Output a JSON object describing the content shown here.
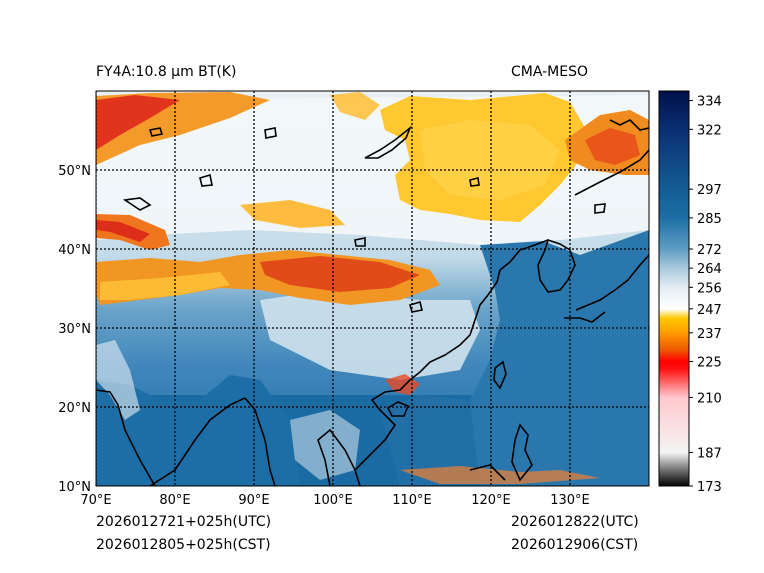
{
  "header": {
    "product_title": "FY4A:10.8 µm BT(K)",
    "model_title": "CMA-MESO"
  },
  "footer": {
    "init_utc": "2026012721+025h(UTC)",
    "init_cst": "2026012805+025h(CST)",
    "valid_utc": "2026012822(UTC)",
    "valid_cst": "2026012906(CST)"
  },
  "map": {
    "lon_range": [
      70,
      140
    ],
    "lat_range": [
      10,
      60
    ],
    "lon_ticks": [
      "70°E",
      "80°E",
      "90°E",
      "100°E",
      "110°E",
      "120°E",
      "130°E"
    ],
    "lat_ticks": [
      "10°N",
      "20°N",
      "30°N",
      "40°N",
      "50°N"
    ],
    "lon_tick_values": [
      70,
      80,
      90,
      100,
      110,
      120,
      130
    ],
    "lat_tick_values": [
      10,
      20,
      30,
      40,
      50
    ],
    "gridlines": "dotted"
  },
  "colorbar": {
    "unit": "K",
    "min": 173,
    "max": 338,
    "ticks": [
      173,
      187,
      210,
      225,
      237,
      247,
      256,
      264,
      272,
      285,
      297,
      322,
      334
    ],
    "tick_labels": [
      "173",
      "187",
      "210",
      "225",
      "237",
      "247",
      "256",
      "264",
      "272",
      "285",
      "297",
      "322",
      "334"
    ],
    "stops": [
      {
        "value": 173,
        "color": "#000000"
      },
      {
        "value": 180,
        "color": "#777777"
      },
      {
        "value": 187,
        "color": "#f4f4f4"
      },
      {
        "value": 210,
        "color": "#ffc8cc"
      },
      {
        "value": 222,
        "color": "#ff1010"
      },
      {
        "value": 225,
        "color": "#ff0000"
      },
      {
        "value": 230,
        "color": "#ee5a00"
      },
      {
        "value": 237,
        "color": "#ff9a00"
      },
      {
        "value": 243,
        "color": "#ffc800"
      },
      {
        "value": 247,
        "color": "#ffffff"
      },
      {
        "value": 256,
        "color": "#e4edf3"
      },
      {
        "value": 264,
        "color": "#aac9dd"
      },
      {
        "value": 272,
        "color": "#5f9ec3"
      },
      {
        "value": 285,
        "color": "#1c6fa6"
      },
      {
        "value": 297,
        "color": "#135d94"
      },
      {
        "value": 322,
        "color": "#0b2f72"
      },
      {
        "value": 338,
        "color": "#00104a"
      }
    ]
  },
  "palette": {
    "ocean": "#1a6ba3",
    "ocean_light": "#3f8dbe",
    "cloud_white": "#edf3f7",
    "cold_yellow": "#ffc72e",
    "cold_orange": "#f08a1c",
    "cold_red": "#e23a1c",
    "coast": "#000000"
  }
}
